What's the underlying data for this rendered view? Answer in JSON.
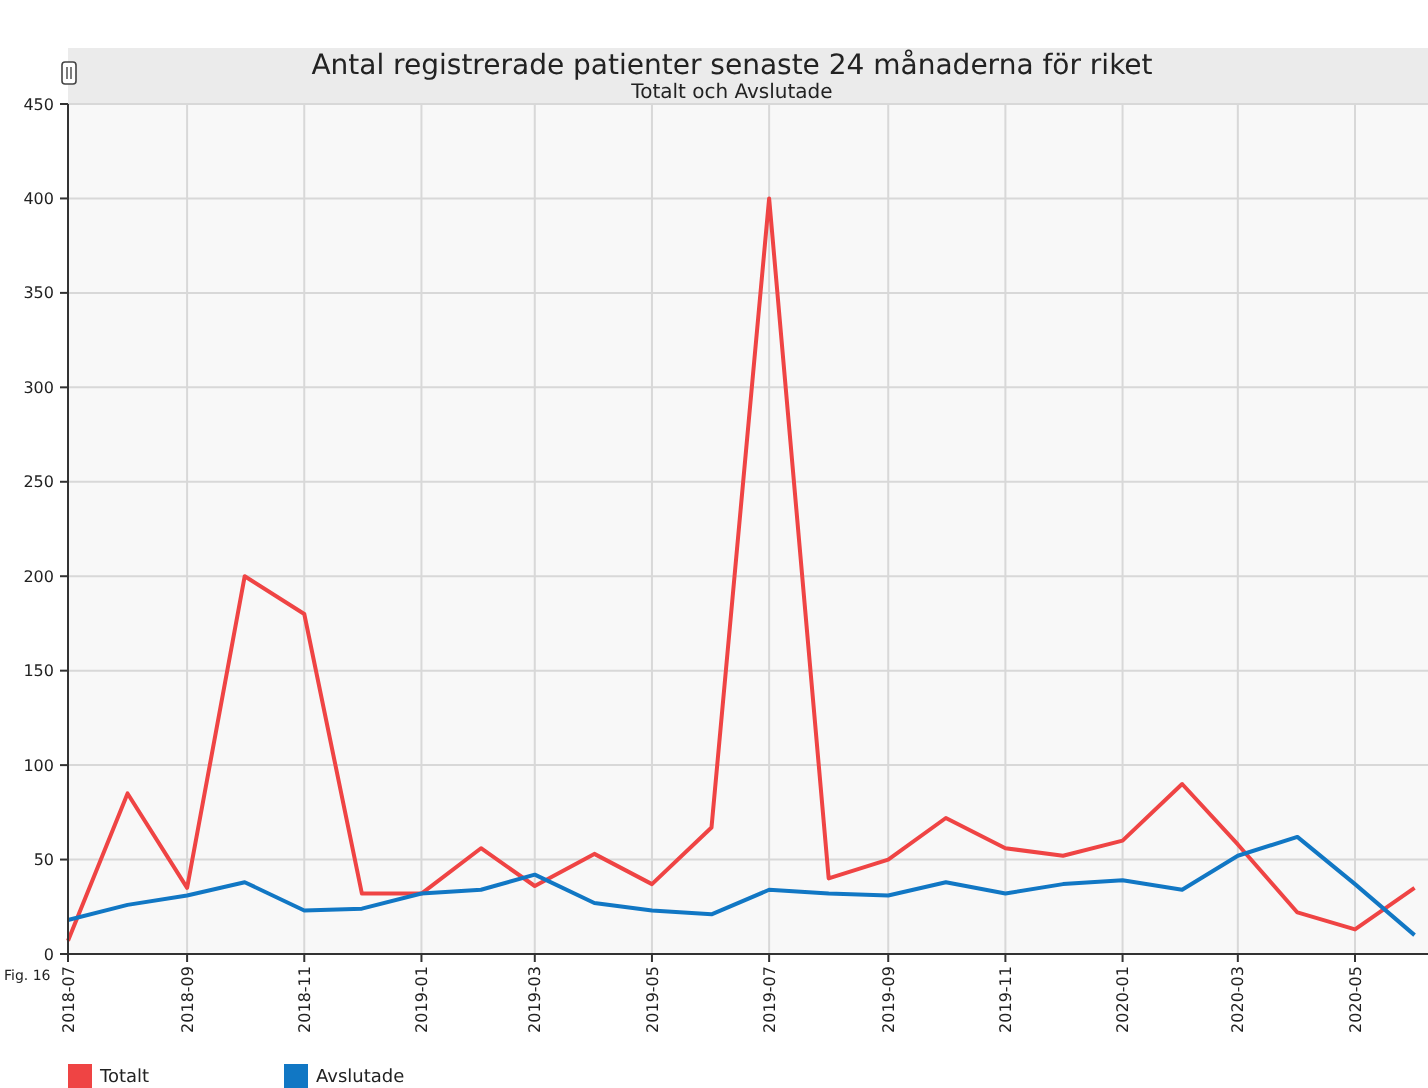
{
  "chart_data": {
    "type": "line",
    "title": "Antal registrerade patienter senaste 24 månaderna för riket",
    "subtitle": "Totalt och Avslutade",
    "x": [
      "2018-07",
      "2018-08",
      "2018-09",
      "2018-10",
      "2018-11",
      "2018-12",
      "2019-01",
      "2019-02",
      "2019-03",
      "2019-04",
      "2019-05",
      "2019-06",
      "2019-07",
      "2019-08",
      "2019-09",
      "2019-10",
      "2019-11",
      "2019-12",
      "2020-01",
      "2020-02",
      "2020-03",
      "2020-04",
      "2020-05",
      "2020-06"
    ],
    "series": [
      {
        "name": "Totalt",
        "color": "#ef4444",
        "values": [
          7,
          85,
          35,
          200,
          180,
          32,
          32,
          56,
          36,
          53,
          37,
          67,
          400,
          40,
          50,
          72,
          56,
          52,
          60,
          90,
          58,
          22,
          13,
          35
        ]
      },
      {
        "name": "Avslutade",
        "color": "#1177c4",
        "values": [
          18,
          26,
          31,
          38,
          23,
          24,
          32,
          34,
          42,
          27,
          23,
          21,
          34,
          32,
          31,
          38,
          32,
          37,
          39,
          34,
          52,
          62,
          37,
          10
        ]
      }
    ],
    "xlim": [
      "2018-07",
      "2020-06-08"
    ],
    "xticks": [
      "2018-07",
      "2018-09",
      "2018-11",
      "2019-01",
      "2019-03",
      "2019-05",
      "2019-07",
      "2019-09",
      "2019-11",
      "2020-01",
      "2020-03",
      "2020-05"
    ],
    "ylim": [
      0,
      450
    ],
    "yticks": [
      0,
      50,
      100,
      150,
      200,
      250,
      300,
      350,
      400,
      450
    ],
    "grid": true,
    "legend": "bottom",
    "marker": "none",
    "line_style": "solid",
    "annotations": [
      "Fig. 16"
    ]
  }
}
